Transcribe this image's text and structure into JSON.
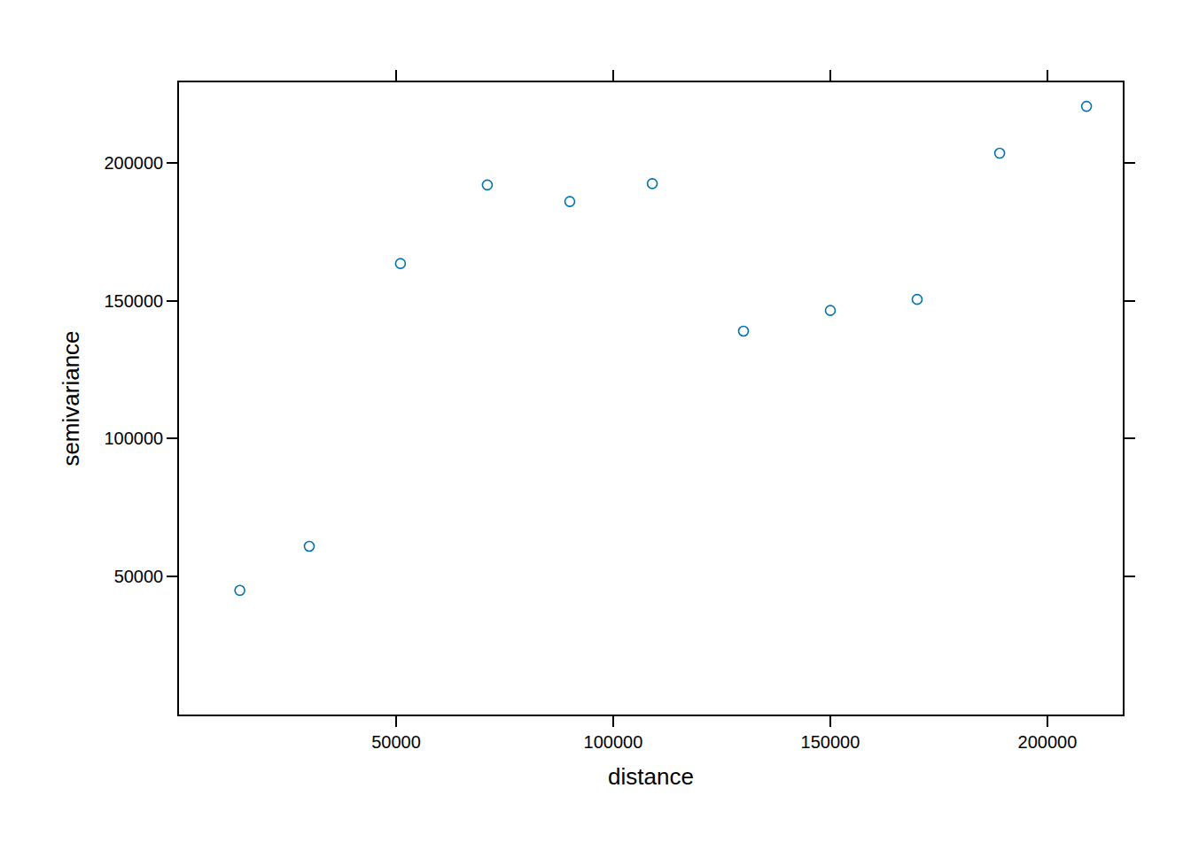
{
  "chart_data": {
    "type": "scatter",
    "x_label": "distance",
    "y_label": "semivariance",
    "x": [
      14000,
      30000,
      51000,
      71000,
      90000,
      109000,
      130000,
      150000,
      170000,
      189000,
      209000
    ],
    "values": [
      45000,
      61000,
      163500,
      192000,
      186000,
      192500,
      139000,
      146500,
      150500,
      203500,
      220500
    ],
    "color": "#0072B2",
    "marker": "open_circle",
    "xlim": [
      0,
      217350
    ],
    "xticks": [
      50000,
      100000,
      150000,
      200000
    ],
    "ylim": [
      0,
      229200
    ],
    "yticks": [
      50000,
      100000,
      150000,
      200000
    ],
    "grid": false
  }
}
